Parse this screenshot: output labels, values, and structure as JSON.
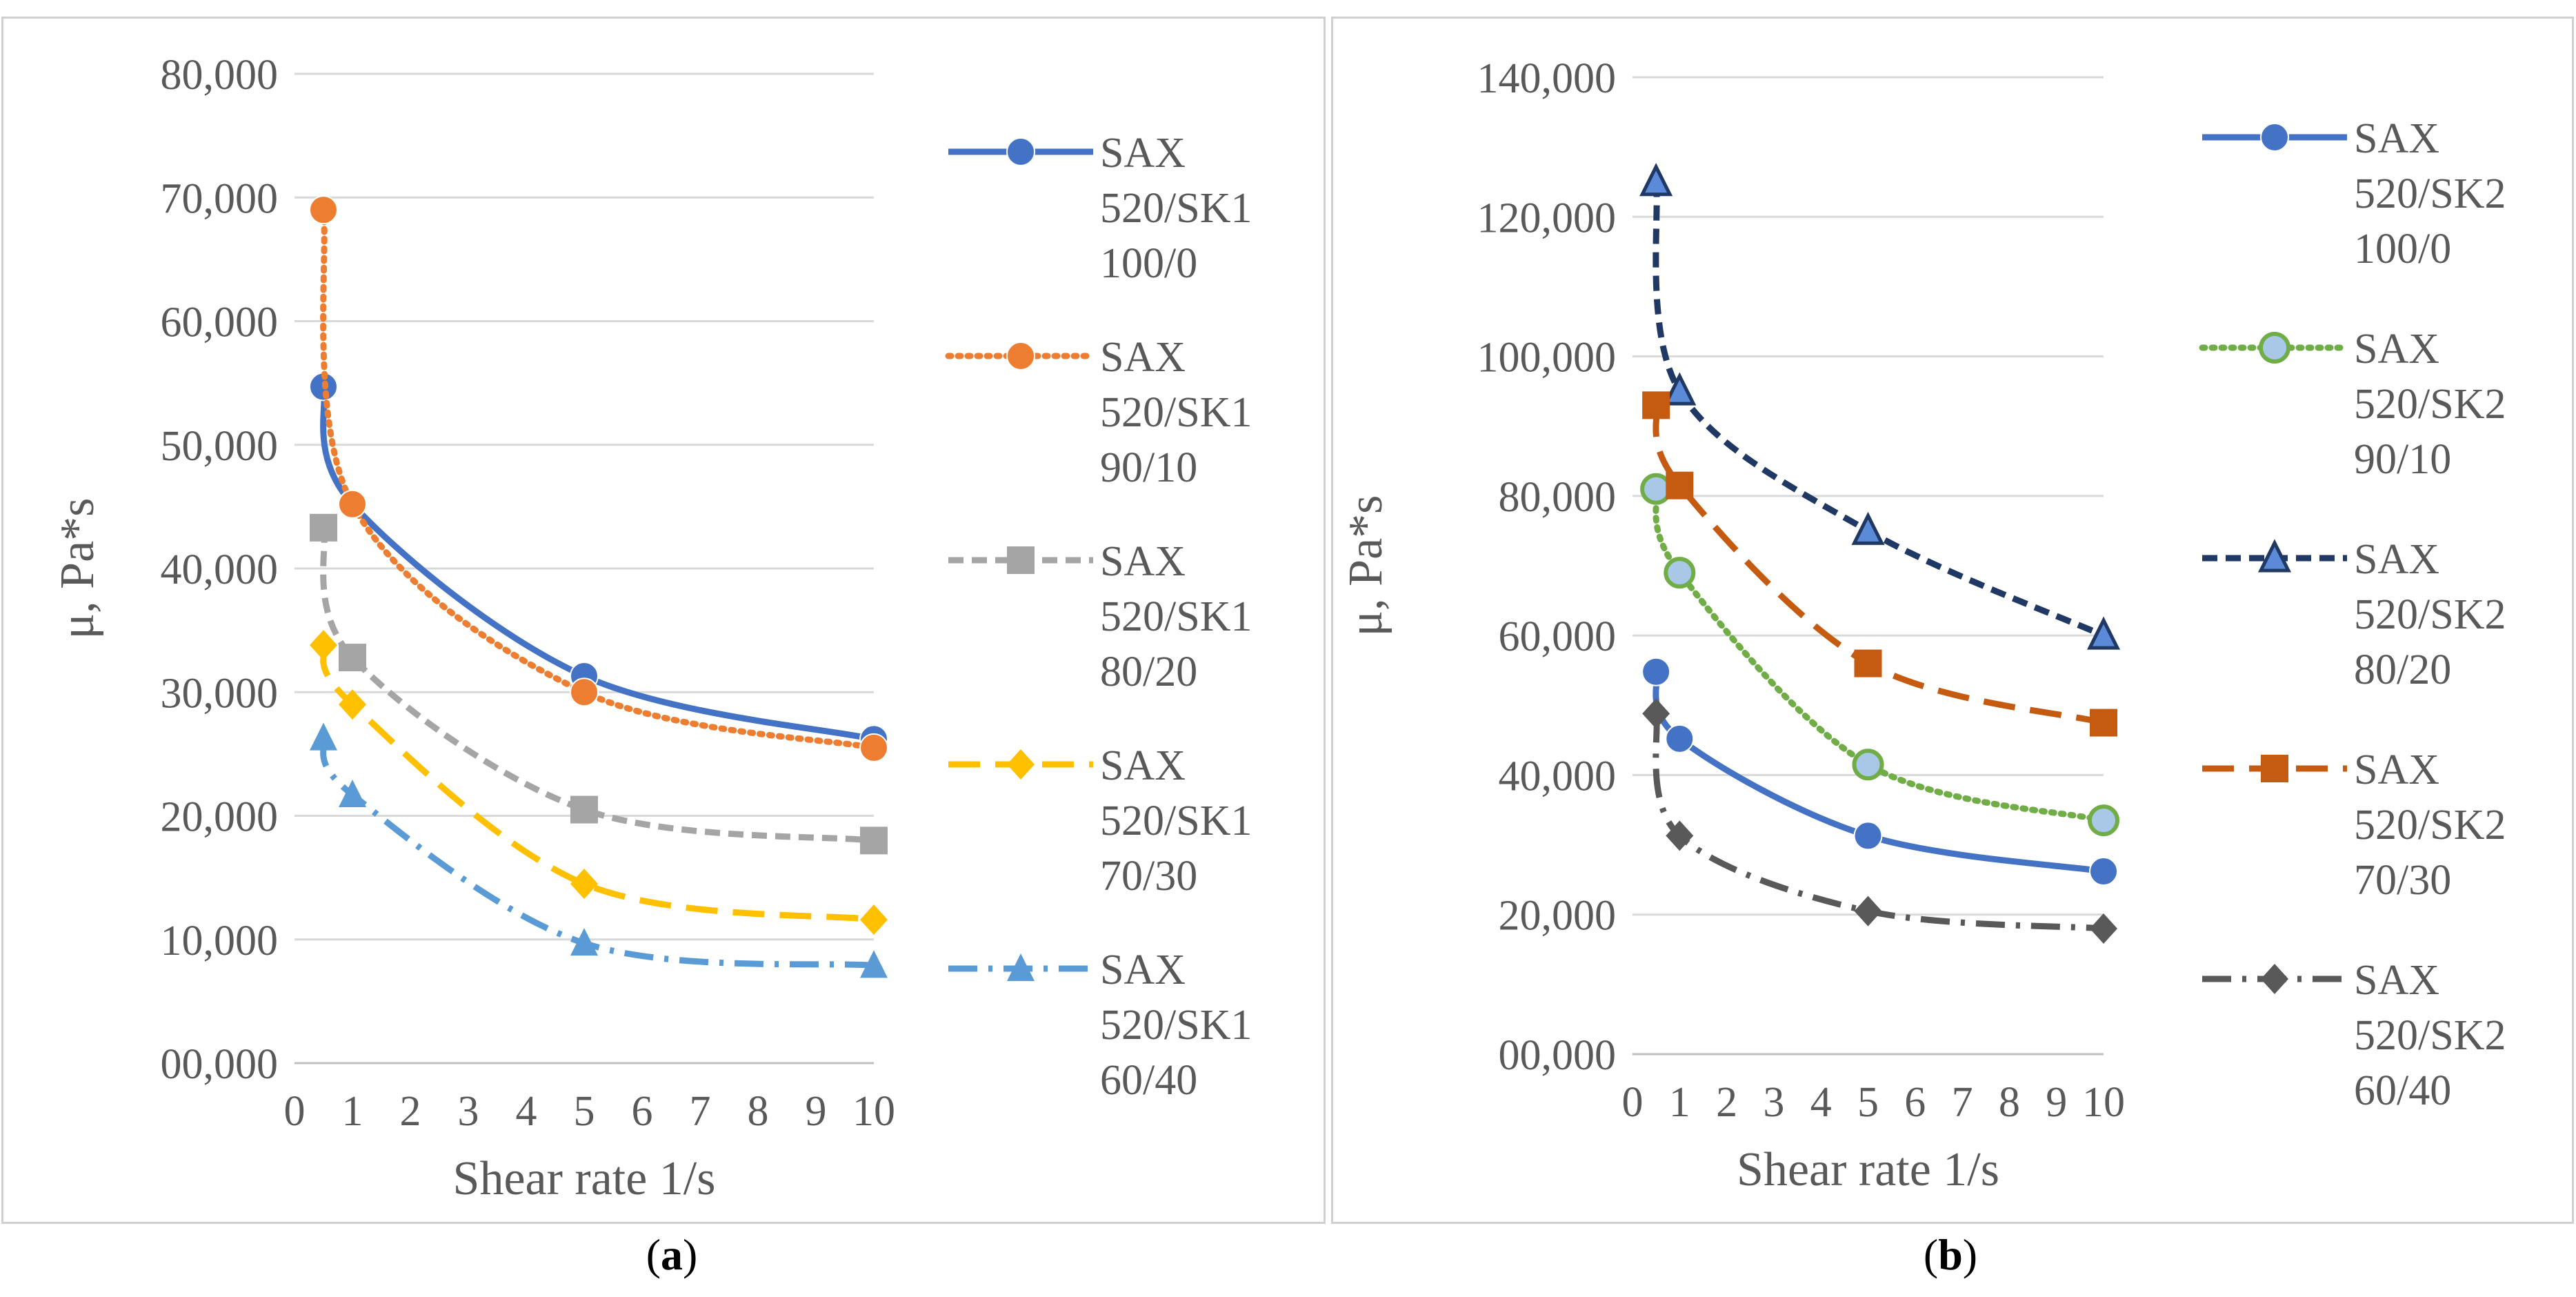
{
  "panels": [
    {
      "id": "a",
      "caption_open": "(",
      "caption_letter": "a",
      "caption_close": ")",
      "chart_data": {
        "type": "line",
        "title": "",
        "xlabel": "Shear rate 1/s",
        "ylabel": "μ, Pa*s",
        "xlim": [
          0,
          10
        ],
        "ylim": [
          0,
          80000
        ],
        "x_ticks": [
          "0",
          "1",
          "2",
          "3",
          "4",
          "5",
          "6",
          "7",
          "8",
          "9",
          "10"
        ],
        "y_ticks": [
          "00,000",
          "10,000",
          "20,000",
          "30,000",
          "40,000",
          "50,000",
          "60,000",
          "70,000",
          "80,000"
        ],
        "grid": true,
        "legend_position": "right",
        "x": [
          0.5,
          1,
          5,
          10
        ],
        "series": [
          {
            "name": "SAX 520/SK1 100/0",
            "label_lines": [
              "SAX",
              "520/SK1",
              "100/0"
            ],
            "values": [
              54700,
              45200,
              31300,
              26200
            ],
            "color": "#4472C4",
            "marker": "circle",
            "dash": "solid"
          },
          {
            "name": "SAX 520/SK1 90/10",
            "label_lines": [
              "SAX",
              "520/SK1",
              "90/10"
            ],
            "values": [
              69000,
              45200,
              30000,
              25500
            ],
            "color": "#ED7D31",
            "marker": "circle",
            "dash": "dotted"
          },
          {
            "name": "SAX 520/SK1 80/20",
            "label_lines": [
              "SAX",
              "520/SK1",
              "80/20"
            ],
            "values": [
              43300,
              32800,
              20500,
              18000
            ],
            "color": "#A5A5A5",
            "marker": "square",
            "dash": "dashed"
          },
          {
            "name": "SAX 520/SK1 70/30",
            "label_lines": [
              "SAX",
              "520/SK1",
              "70/30"
            ],
            "values": [
              33800,
              29000,
              14500,
              11600
            ],
            "color": "#FFC000",
            "marker": "diamond",
            "dash": "longdash"
          },
          {
            "name": "SAX 520/SK1 60/40",
            "label_lines": [
              "SAX",
              "520/SK1",
              "60/40"
            ],
            "values": [
              26300,
              21700,
              9700,
              7900
            ],
            "color": "#5B9BD5",
            "marker": "triangle",
            "dash": "dashdot"
          }
        ]
      }
    },
    {
      "id": "b",
      "caption_open": "(",
      "caption_letter": "b",
      "caption_close": ")",
      "chart_data": {
        "type": "line",
        "title": "",
        "xlabel": "Shear rate 1/s",
        "ylabel": "μ, Pa*s",
        "xlim": [
          0,
          10
        ],
        "ylim": [
          0,
          140000
        ],
        "x_ticks": [
          "0",
          "1",
          "2",
          "3",
          "4",
          "5",
          "6",
          "7",
          "8",
          "9",
          "10"
        ],
        "y_ticks": [
          "00,000",
          "20,000",
          "40,000",
          "60,000",
          "80,000",
          "100,000",
          "120,000",
          "140,000"
        ],
        "grid": true,
        "legend_position": "right",
        "x": [
          0.5,
          1,
          5,
          10
        ],
        "series": [
          {
            "name": "SAX 520/SK2 100/0",
            "label_lines": [
              "SAX",
              "520/SK2",
              "100/0"
            ],
            "values": [
              54800,
              45200,
              31300,
              26200
            ],
            "color": "#4472C4",
            "marker": "circle",
            "dash": "solid"
          },
          {
            "name": "SAX 520/SK2 90/10",
            "label_lines": [
              "SAX",
              "520/SK2",
              "90/10"
            ],
            "values": [
              81000,
              69000,
              41500,
              33500
            ],
            "color": "#70AD47",
            "marker": "circle-green",
            "dash": "dotted"
          },
          {
            "name": "SAX 520/SK2 80/20",
            "label_lines": [
              "SAX",
              "520/SK2",
              "80/20"
            ],
            "values": [
              125000,
              95000,
              75000,
              60000
            ],
            "color": "#203864",
            "marker": "triangle-blue",
            "dash": "dashed"
          },
          {
            "name": "SAX 520/SK2 70/30",
            "label_lines": [
              "SAX",
              "520/SK2",
              "70/30"
            ],
            "values": [
              93000,
              81500,
              56000,
              47500
            ],
            "color": "#C55A11",
            "marker": "square",
            "dash": "longdash"
          },
          {
            "name": "SAX 520/SK2 60/40",
            "label_lines": [
              "SAX",
              "520/SK2",
              "60/40"
            ],
            "values": [
              48800,
              31300,
              20500,
              18000
            ],
            "color": "#595959",
            "marker": "diamond",
            "dash": "dashdot"
          }
        ]
      }
    }
  ]
}
